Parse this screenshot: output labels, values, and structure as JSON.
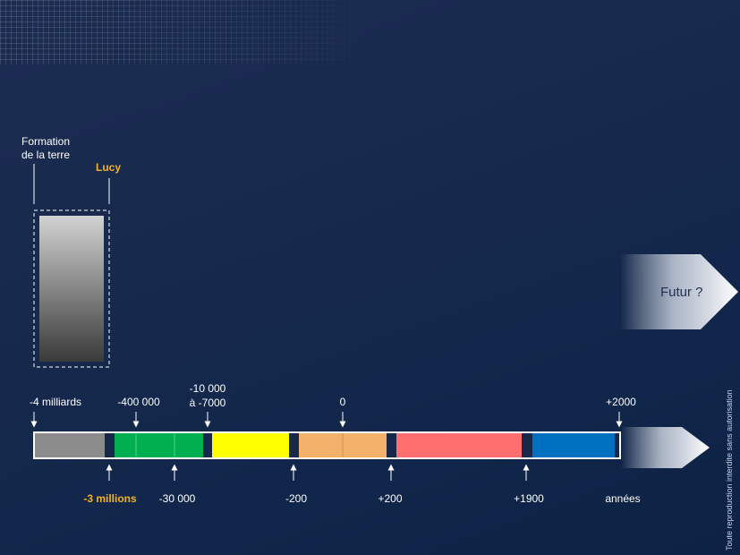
{
  "zoom": {
    "formation_label": "Formation\nde la terre",
    "lucy_label": "Lucy"
  },
  "timeline": {
    "top_labels": [
      "-4 milliards",
      "-400 000",
      "-10 000\nà -7000",
      "0",
      "+2000"
    ],
    "bottom_labels": [
      "-3 millions",
      "-30 000",
      "-200",
      "+200",
      "+1900",
      "années"
    ],
    "segment_colors": [
      "#8c8c8c",
      "#00b050",
      "#ffff00",
      "#f4b16b",
      "#ff6f6f",
      "#0070c0"
    ],
    "highlight_color": "#f0b323"
  },
  "future": {
    "label": "Futur ?"
  },
  "copyright": "Toute reproduction interdite sans autorisation"
}
